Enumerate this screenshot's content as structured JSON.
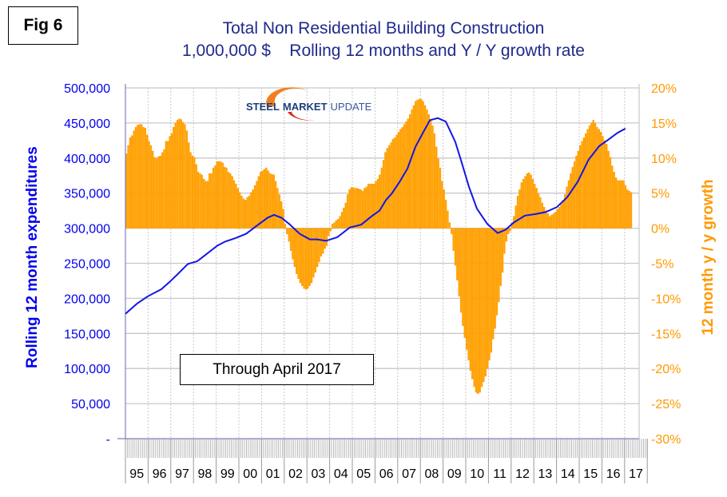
{
  "figure_label": "Fig 6",
  "note": "Through April 2017",
  "logo_text": {
    "part1": "STEEL",
    "part2": "MARKET",
    "part3": "UPDATE"
  },
  "colors": {
    "line": "#1515e6",
    "bars": "#ffa500",
    "title": "#1f2a8c",
    "left_axis": "#0000ee",
    "right_axis": "#ff9900"
  },
  "chart_data": {
    "type": "bar+line",
    "title": "Total Non Residential Building Construction",
    "subtitle": "1,000,000 $    Rolling 12 months and Y / Y growth rate",
    "ylabel_left": "Rolling 12 month expenditures",
    "ylabel_right": "12 month y / y growth",
    "ylim_left": [
      0,
      500000
    ],
    "ylim_right": [
      -30,
      20
    ],
    "yticks_left": [
      "500,000",
      "450,000",
      "400,000",
      "350,000",
      "300,000",
      "250,000",
      "200,000",
      "150,000",
      "100,000",
      "50,000",
      "-"
    ],
    "yticks_right": [
      "20%",
      "15%",
      "10%",
      "5%",
      "0%",
      "-5%",
      "-10%",
      "-15%",
      "-20%",
      "-25%",
      "-30%"
    ],
    "xticks": [
      "95",
      "96",
      "97",
      "98",
      "99",
      "00",
      "01",
      "02",
      "03",
      "04",
      "05",
      "06",
      "07",
      "08",
      "09",
      "10",
      "11",
      "12",
      "13",
      "14",
      "15",
      "16",
      "17"
    ],
    "grid": true,
    "bars": {
      "name": "12 month y/y growth (%)",
      "start": "1995-01",
      "frequency": "monthly",
      "values": [
        10.6,
        11.8,
        12.9,
        13.2,
        13.9,
        14.4,
        14.7,
        14.8,
        14.8,
        14.4,
        14.3,
        13.3,
        12.4,
        11.8,
        11.0,
        10.1,
        9.9,
        10.2,
        10.3,
        10.8,
        11.2,
        12.4,
        12.4,
        13.1,
        13.5,
        14.4,
        15.0,
        15.4,
        15.6,
        15.5,
        15.1,
        14.8,
        13.9,
        12.2,
        10.8,
        10.3,
        10.1,
        9.1,
        8.0,
        7.8,
        7.6,
        7.0,
        6.7,
        6.7,
        7.8,
        7.8,
        8.6,
        8.9,
        9.5,
        9.5,
        9.5,
        9.3,
        8.7,
        8.6,
        8.0,
        7.8,
        7.4,
        6.8,
        6.3,
        5.7,
        5.1,
        4.6,
        4.2,
        4.0,
        4.4,
        4.6,
        5.1,
        5.5,
        6.1,
        6.7,
        7.4,
        8.0,
        8.2,
        8.4,
        8.6,
        8.2,
        7.8,
        7.7,
        7.6,
        6.7,
        5.7,
        4.8,
        3.8,
        2.7,
        0.6,
        -0.8,
        -1.9,
        -3.2,
        -4.4,
        -5.5,
        -6.5,
        -7.2,
        -7.8,
        -8.2,
        -8.6,
        -8.7,
        -8.6,
        -8.2,
        -7.8,
        -7.0,
        -6.3,
        -5.5,
        -4.8,
        -4.0,
        -3.6,
        -2.9,
        -2.5,
        -1.1,
        -0.4,
        0.6,
        0.8,
        1.1,
        1.3,
        1.7,
        2.3,
        2.9,
        3.6,
        4.8,
        5.5,
        5.8,
        5.8,
        5.7,
        5.7,
        5.6,
        5.5,
        5.3,
        5.7,
        5.9,
        6.3,
        6.3,
        6.3,
        6.3,
        6.7,
        7.0,
        7.6,
        8.6,
        9.7,
        10.8,
        11.4,
        11.8,
        12.2,
        12.7,
        12.9,
        13.3,
        13.7,
        14.1,
        14.4,
        14.8,
        15.2,
        15.6,
        16.2,
        16.9,
        17.5,
        18.1,
        18.3,
        18.4,
        18.4,
        18.1,
        17.5,
        16.9,
        16.2,
        15.4,
        14.6,
        13.5,
        11.6,
        9.9,
        8.6,
        6.7,
        5.5,
        4.0,
        2.5,
        0.8,
        -0.8,
        -3.2,
        -5.3,
        -7.4,
        -9.7,
        -12.0,
        -13.9,
        -15.6,
        -17.3,
        -18.8,
        -20.3,
        -21.5,
        -22.6,
        -23.4,
        -23.6,
        -23.4,
        -22.6,
        -21.9,
        -21.1,
        -20.0,
        -18.8,
        -17.7,
        -15.8,
        -14.3,
        -12.4,
        -10.5,
        -8.2,
        -6.3,
        -3.6,
        -1.9,
        -0.8,
        -0.4,
        0.8,
        1.7,
        3.2,
        4.6,
        5.5,
        6.5,
        7.0,
        7.4,
        7.8,
        7.9,
        7.6,
        7.0,
        6.3,
        5.7,
        4.9,
        4.4,
        3.6,
        3.0,
        2.5,
        2.1,
        1.7,
        1.9,
        2.1,
        2.3,
        2.7,
        3.0,
        3.4,
        4.0,
        4.8,
        5.9,
        6.8,
        7.8,
        8.7,
        9.5,
        10.3,
        11.0,
        11.8,
        12.4,
        12.9,
        13.5,
        14.1,
        14.6,
        15.0,
        15.4,
        15.0,
        14.4,
        14.1,
        13.7,
        13.1,
        12.5,
        12.0,
        11.0,
        10.1,
        8.9,
        8.0,
        7.2,
        6.8,
        6.8,
        6.8,
        6.8,
        6.1,
        5.5,
        5.3,
        5.1
      ]
    },
    "line": {
      "name": "Rolling 12 month expenditures",
      "points": [
        [
          1995.0,
          178000
        ],
        [
          1995.53,
          193000
        ],
        [
          1995.99,
          203000
        ],
        [
          1996.58,
          213000
        ],
        [
          1996.97,
          224000
        ],
        [
          1997.29,
          234000
        ],
        [
          1997.75,
          249000
        ],
        [
          1998.17,
          253000
        ],
        [
          1998.45,
          260000
        ],
        [
          1999.05,
          275000
        ],
        [
          1999.4,
          281000
        ],
        [
          1999.86,
          286000
        ],
        [
          2000.32,
          292000
        ],
        [
          2000.81,
          304000
        ],
        [
          2001.27,
          315000
        ],
        [
          2001.55,
          319000
        ],
        [
          2001.87,
          315000
        ],
        [
          2002.22,
          306000
        ],
        [
          2002.68,
          292000
        ],
        [
          2003.13,
          284000
        ],
        [
          2003.45,
          284000
        ],
        [
          2003.84,
          282000
        ],
        [
          2004.33,
          287000
        ],
        [
          2004.89,
          301000
        ],
        [
          2005.39,
          305000
        ],
        [
          2005.85,
          317000
        ],
        [
          2006.2,
          325000
        ],
        [
          2006.48,
          340000
        ],
        [
          2006.73,
          349000
        ],
        [
          2007.08,
          366000
        ],
        [
          2007.43,
          385000
        ],
        [
          2007.78,
          416000
        ],
        [
          2008.13,
          437000
        ],
        [
          2008.42,
          454000
        ],
        [
          2008.77,
          457000
        ],
        [
          2009.12,
          452000
        ],
        [
          2009.54,
          423000
        ],
        [
          2009.79,
          397000
        ],
        [
          2010.14,
          359000
        ],
        [
          2010.49,
          328000
        ],
        [
          2010.95,
          306000
        ],
        [
          2011.41,
          293000
        ],
        [
          2011.76,
          298000
        ],
        [
          2012.11,
          308000
        ],
        [
          2012.61,
          318000
        ],
        [
          2013.06,
          320000
        ],
        [
          2013.52,
          323000
        ],
        [
          2014.01,
          330000
        ],
        [
          2014.47,
          344000
        ],
        [
          2014.93,
          366000
        ],
        [
          2015.42,
          398000
        ],
        [
          2015.88,
          417000
        ],
        [
          2016.23,
          425000
        ],
        [
          2016.69,
          436000
        ],
        [
          2017.04,
          442000
        ]
      ]
    }
  }
}
